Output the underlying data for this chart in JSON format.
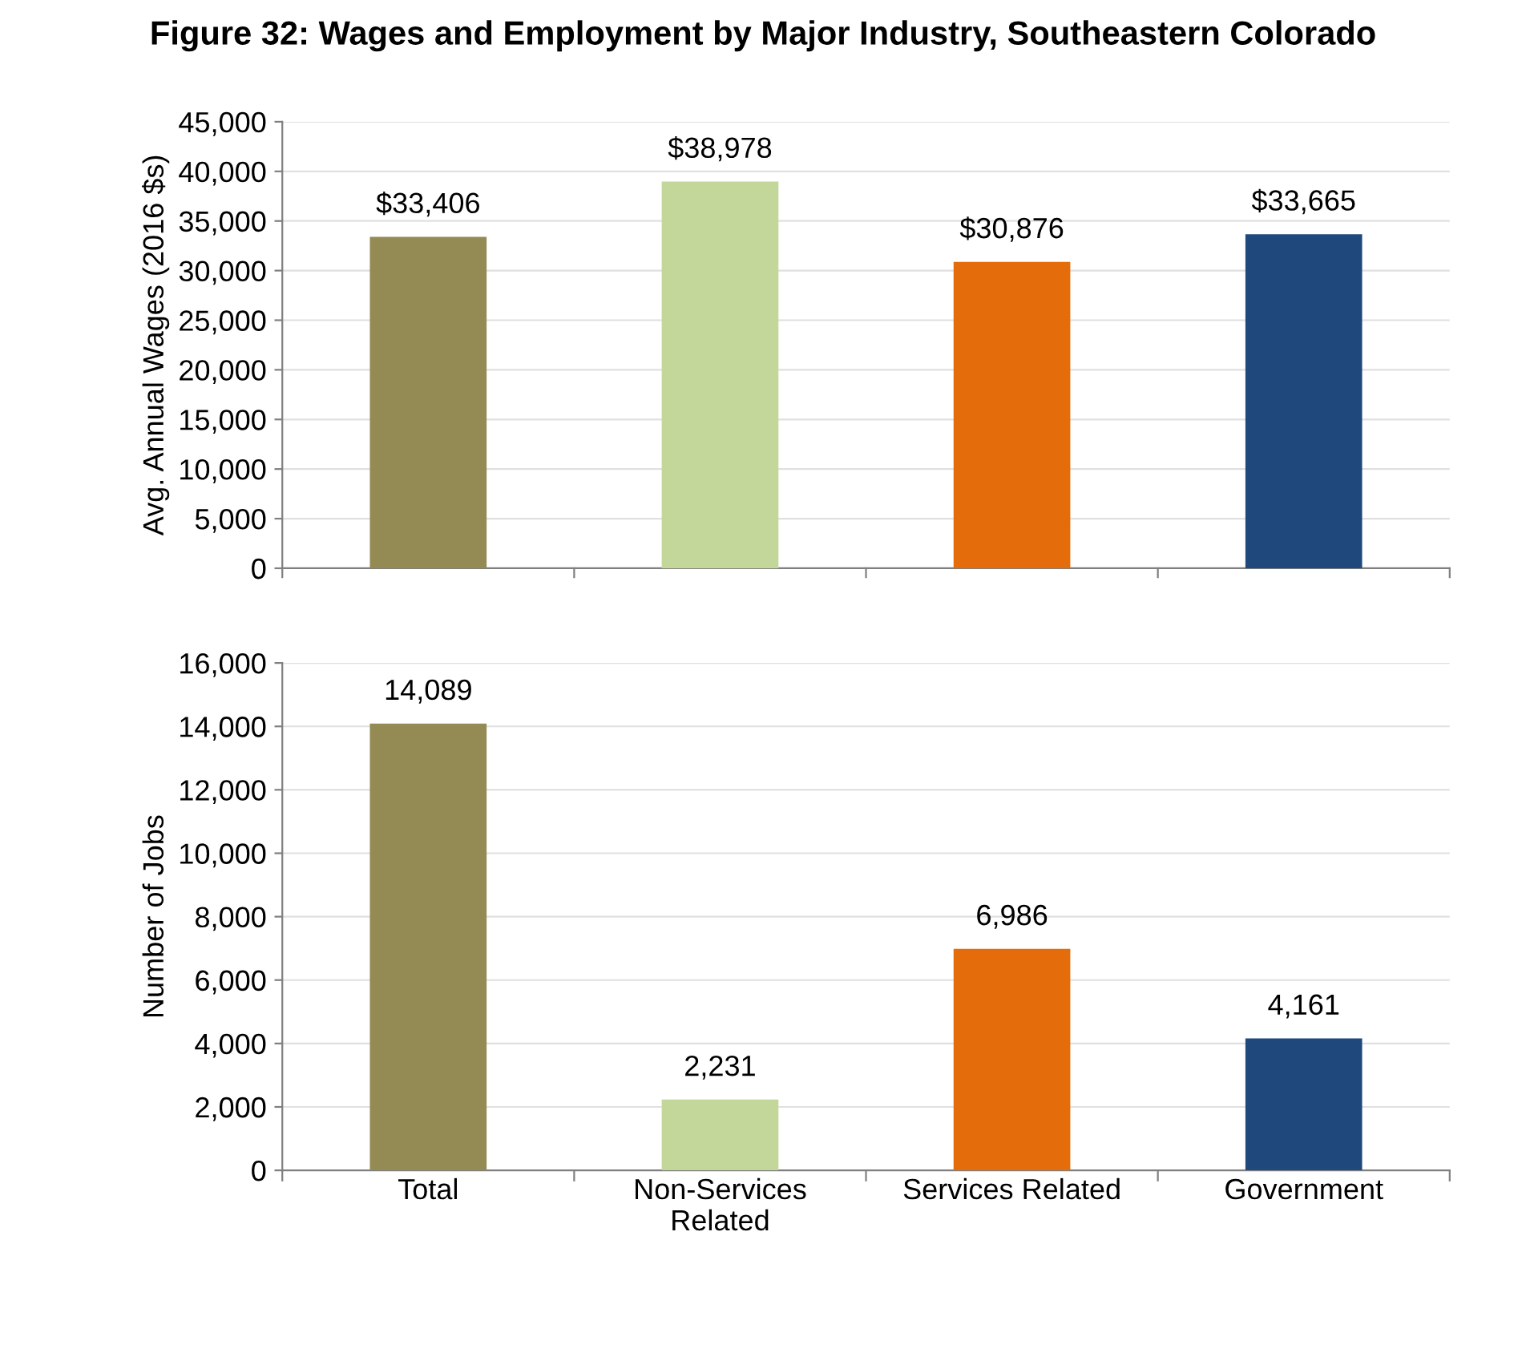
{
  "chart_data": [
    {
      "type": "bar",
      "title": "Figure 32: Wages and Employment by Major Industry, Southeastern Colorado",
      "ylabel": "Avg. Annual Wages (2016 $s)",
      "categories": [
        null,
        null,
        null,
        null
      ],
      "values": [
        33406,
        38978,
        30876,
        33665
      ],
      "colors": [
        "#948a54",
        "#c4d79b",
        "#e46c0a",
        "#1f497d"
      ],
      "value_labels": [
        "$33,406",
        "$38,978",
        "$30,876",
        "$33,665"
      ],
      "ylim": [
        0,
        45000
      ],
      "yticks": [
        {
          "value": 0,
          "label": "0"
        },
        {
          "value": 5000,
          "label": "5,000"
        },
        {
          "value": 10000,
          "label": "10,000"
        },
        {
          "value": 15000,
          "label": "15,000"
        },
        {
          "value": 20000,
          "label": "20,000"
        },
        {
          "value": 25000,
          "label": "25,000"
        },
        {
          "value": 30000,
          "label": "30,000"
        },
        {
          "value": 35000,
          "label": "35,000"
        },
        {
          "value": 40000,
          "label": "40,000"
        },
        {
          "value": 45000,
          "label": "45,000"
        }
      ],
      "grid": "y",
      "tick_labels": "y"
    },
    {
      "type": "bar",
      "ylabel": "Number of Jobs",
      "categories": [
        "Total",
        "Non-Services\nRelated",
        "Services Related",
        "Government"
      ],
      "values": [
        14089,
        2231,
        6986,
        4161
      ],
      "colors": [
        "#948a54",
        "#c4d79b",
        "#e46c0a",
        "#1f497d"
      ],
      "value_labels": [
        "14,089",
        "2,231",
        "6,986",
        "4,161"
      ],
      "ylim": [
        0,
        16000
      ],
      "yticks": [
        {
          "value": 0,
          "label": "0"
        },
        {
          "value": 2000,
          "label": "2,000"
        },
        {
          "value": 4000,
          "label": "4,000"
        },
        {
          "value": 6000,
          "label": "6,000"
        },
        {
          "value": 8000,
          "label": "8,000"
        },
        {
          "value": 10000,
          "label": "10,000"
        },
        {
          "value": 12000,
          "label": "12,000"
        },
        {
          "value": 14000,
          "label": "14,000"
        },
        {
          "value": 16000,
          "label": "16,000"
        }
      ],
      "grid": "y"
    }
  ]
}
